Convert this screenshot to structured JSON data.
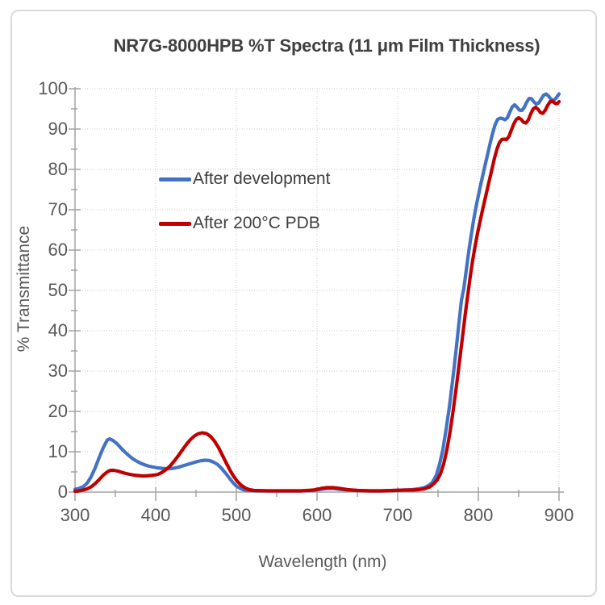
{
  "colors": {
    "background": "#ffffff",
    "frame_border": "#d9d9d9",
    "grid": "#c9c9c9",
    "axis": "#a3a3a3",
    "tick_text": "#595959",
    "title_text": "#404040",
    "legend_text": "#404040",
    "series_blue": "#4472c4",
    "series_red": "#c00000"
  },
  "chart_data": {
    "type": "line",
    "title": "NR7G-8000HPB %T Spectra (11 μm Film Thickness)",
    "xlabel": "Wavelength (nm)",
    "ylabel": "% Transmittance",
    "xlim": [
      300,
      900
    ],
    "ylim": [
      0,
      100
    ],
    "x_major_ticks": [
      300,
      400,
      500,
      600,
      700,
      800,
      900
    ],
    "x_minor_ticks": [
      350,
      450,
      550,
      650,
      750,
      850
    ],
    "y_major_ticks": [
      0,
      10,
      20,
      30,
      40,
      50,
      60,
      70,
      80,
      90,
      100
    ],
    "y_minor_ticks": [
      5,
      15,
      25,
      35,
      45,
      55,
      65,
      75,
      85,
      95
    ],
    "grid": "dotted gridlines at every major tick, both axes",
    "legend_position": "inside upper-left",
    "series": [
      {
        "name": "After development",
        "color": "#4472c4",
        "points": [
          [
            300,
            0.7
          ],
          [
            305,
            0.9
          ],
          [
            310,
            1.3
          ],
          [
            315,
            2.2
          ],
          [
            320,
            3.8
          ],
          [
            325,
            6.0
          ],
          [
            330,
            8.6
          ],
          [
            335,
            11.0
          ],
          [
            340,
            12.9
          ],
          [
            343,
            13.2
          ],
          [
            347,
            12.8
          ],
          [
            352,
            12.0
          ],
          [
            357,
            10.9
          ],
          [
            362,
            9.9
          ],
          [
            367,
            9.0
          ],
          [
            372,
            8.2
          ],
          [
            377,
            7.6
          ],
          [
            382,
            7.1
          ],
          [
            387,
            6.7
          ],
          [
            392,
            6.4
          ],
          [
            397,
            6.2
          ],
          [
            402,
            6.0
          ],
          [
            407,
            5.9
          ],
          [
            412,
            5.8
          ],
          [
            417,
            5.8
          ],
          [
            422,
            5.9
          ],
          [
            427,
            6.1
          ],
          [
            432,
            6.4
          ],
          [
            437,
            6.7
          ],
          [
            442,
            7.0
          ],
          [
            447,
            7.3
          ],
          [
            452,
            7.6
          ],
          [
            457,
            7.8
          ],
          [
            462,
            7.9
          ],
          [
            467,
            7.8
          ],
          [
            472,
            7.4
          ],
          [
            477,
            6.8
          ],
          [
            482,
            5.8
          ],
          [
            487,
            4.6
          ],
          [
            492,
            3.3
          ],
          [
            496,
            2.3
          ],
          [
            500,
            1.5
          ],
          [
            505,
            0.9
          ],
          [
            510,
            0.5
          ],
          [
            515,
            0.4
          ],
          [
            525,
            0.3
          ],
          [
            540,
            0.3
          ],
          [
            560,
            0.3
          ],
          [
            580,
            0.3
          ],
          [
            595,
            0.4
          ],
          [
            605,
            0.7
          ],
          [
            612,
            0.9
          ],
          [
            620,
            0.9
          ],
          [
            628,
            0.7
          ],
          [
            638,
            0.5
          ],
          [
            650,
            0.4
          ],
          [
            665,
            0.3
          ],
          [
            680,
            0.3
          ],
          [
            695,
            0.4
          ],
          [
            708,
            0.5
          ],
          [
            718,
            0.6
          ],
          [
            726,
            0.8
          ],
          [
            733,
            1.1
          ],
          [
            739,
            1.7
          ],
          [
            743,
            2.4
          ],
          [
            748,
            4.2
          ],
          [
            752,
            7.0
          ],
          [
            756,
            10.5
          ],
          [
            760,
            15.5
          ],
          [
            764,
            21.0
          ],
          [
            768,
            27.5
          ],
          [
            772,
            34.5
          ],
          [
            776,
            42.0
          ],
          [
            779,
            47.5
          ],
          [
            782,
            50.5
          ],
          [
            785,
            55.0
          ],
          [
            788,
            59.5
          ],
          [
            791,
            63.5
          ],
          [
            794,
            67.3
          ],
          [
            797,
            70.6
          ],
          [
            800,
            73.5
          ],
          [
            803,
            76.3
          ],
          [
            806,
            79.0
          ],
          [
            809,
            81.6
          ],
          [
            812,
            84.2
          ],
          [
            815,
            86.8
          ],
          [
            818,
            89.2
          ],
          [
            821,
            91.2
          ],
          [
            824,
            92.4
          ],
          [
            827,
            92.7
          ],
          [
            830,
            92.6
          ],
          [
            833,
            92.3
          ],
          [
            836,
            92.8
          ],
          [
            839,
            94.2
          ],
          [
            842,
            95.5
          ],
          [
            845,
            96.0
          ],
          [
            848,
            95.4
          ],
          [
            851,
            94.7
          ],
          [
            854,
            94.6
          ],
          [
            857,
            95.4
          ],
          [
            860,
            96.7
          ],
          [
            863,
            97.6
          ],
          [
            866,
            97.5
          ],
          [
            869,
            96.7
          ],
          [
            872,
            96.2
          ],
          [
            875,
            96.5
          ],
          [
            878,
            97.5
          ],
          [
            881,
            98.4
          ],
          [
            884,
            98.7
          ],
          [
            887,
            98.2
          ],
          [
            890,
            97.4
          ],
          [
            893,
            97.1
          ],
          [
            896,
            97.6
          ],
          [
            900,
            98.7
          ]
        ]
      },
      {
        "name": "After 200°C PDB",
        "color": "#c00000",
        "points": [
          [
            300,
            0.2
          ],
          [
            305,
            0.3
          ],
          [
            310,
            0.5
          ],
          [
            315,
            0.8
          ],
          [
            320,
            1.3
          ],
          [
            325,
            2.1
          ],
          [
            330,
            3.1
          ],
          [
            335,
            4.2
          ],
          [
            340,
            5.0
          ],
          [
            344,
            5.4
          ],
          [
            348,
            5.4
          ],
          [
            353,
            5.2
          ],
          [
            358,
            4.9
          ],
          [
            363,
            4.6
          ],
          [
            368,
            4.4
          ],
          [
            373,
            4.2
          ],
          [
            378,
            4.1
          ],
          [
            383,
            4.0
          ],
          [
            388,
            4.0
          ],
          [
            393,
            4.1
          ],
          [
            398,
            4.2
          ],
          [
            403,
            4.4
          ],
          [
            408,
            4.9
          ],
          [
            413,
            5.6
          ],
          [
            418,
            6.5
          ],
          [
            423,
            7.7
          ],
          [
            428,
            9.0
          ],
          [
            433,
            10.4
          ],
          [
            438,
            11.8
          ],
          [
            443,
            13.0
          ],
          [
            448,
            13.9
          ],
          [
            453,
            14.5
          ],
          [
            458,
            14.7
          ],
          [
            463,
            14.5
          ],
          [
            468,
            13.8
          ],
          [
            473,
            12.6
          ],
          [
            478,
            11.0
          ],
          [
            483,
            9.0
          ],
          [
            488,
            7.0
          ],
          [
            493,
            5.1
          ],
          [
            497,
            3.8
          ],
          [
            501,
            2.7
          ],
          [
            506,
            1.7
          ],
          [
            511,
            1.0
          ],
          [
            516,
            0.6
          ],
          [
            522,
            0.4
          ],
          [
            540,
            0.3
          ],
          [
            560,
            0.3
          ],
          [
            580,
            0.3
          ],
          [
            595,
            0.5
          ],
          [
            605,
            0.9
          ],
          [
            612,
            1.1
          ],
          [
            620,
            1.1
          ],
          [
            628,
            0.9
          ],
          [
            638,
            0.6
          ],
          [
            650,
            0.4
          ],
          [
            665,
            0.3
          ],
          [
            680,
            0.3
          ],
          [
            695,
            0.4
          ],
          [
            708,
            0.5
          ],
          [
            718,
            0.5
          ],
          [
            726,
            0.6
          ],
          [
            733,
            0.8
          ],
          [
            740,
            1.3
          ],
          [
            745,
            2.1
          ],
          [
            749,
            3.0
          ],
          [
            753,
            4.5
          ],
          [
            757,
            7.0
          ],
          [
            761,
            10.5
          ],
          [
            765,
            15.0
          ],
          [
            769,
            20.5
          ],
          [
            773,
            26.5
          ],
          [
            777,
            33.0
          ],
          [
            781,
            39.5
          ],
          [
            784,
            44.5
          ],
          [
            787,
            49.0
          ],
          [
            790,
            53.5
          ],
          [
            793,
            57.5
          ],
          [
            796,
            61.0
          ],
          [
            799,
            64.2
          ],
          [
            802,
            67.0
          ],
          [
            805,
            69.8
          ],
          [
            808,
            72.4
          ],
          [
            811,
            75.0
          ],
          [
            814,
            77.6
          ],
          [
            817,
            80.2
          ],
          [
            820,
            82.8
          ],
          [
            823,
            85.0
          ],
          [
            826,
            86.6
          ],
          [
            829,
            87.4
          ],
          [
            832,
            87.5
          ],
          [
            835,
            87.4
          ],
          [
            838,
            88.2
          ],
          [
            841,
            89.8
          ],
          [
            844,
            91.3
          ],
          [
            847,
            92.4
          ],
          [
            850,
            92.8
          ],
          [
            853,
            92.4
          ],
          [
            856,
            91.7
          ],
          [
            859,
            91.5
          ],
          [
            862,
            92.3
          ],
          [
            865,
            93.8
          ],
          [
            868,
            95.0
          ],
          [
            871,
            95.4
          ],
          [
            874,
            94.9
          ],
          [
            877,
            94.1
          ],
          [
            880,
            93.9
          ],
          [
            883,
            94.7
          ],
          [
            886,
            95.9
          ],
          [
            889,
            96.8
          ],
          [
            892,
            96.9
          ],
          [
            895,
            96.4
          ],
          [
            898,
            96.3
          ],
          [
            900,
            96.8
          ]
        ]
      }
    ]
  }
}
